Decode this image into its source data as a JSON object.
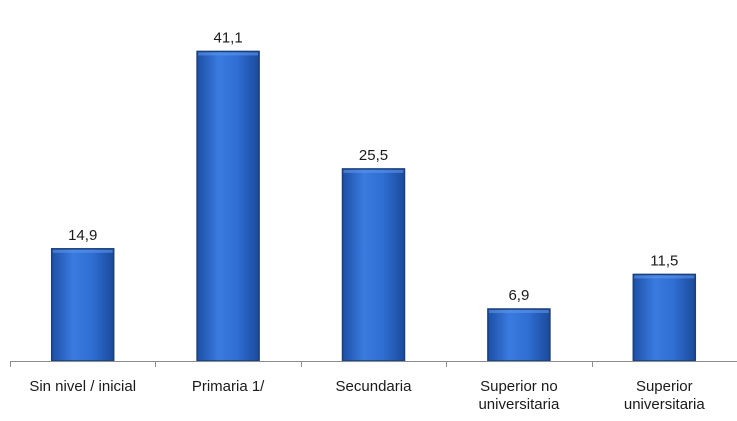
{
  "chart_data": {
    "type": "bar",
    "categories": [
      [
        "Sin nivel / inicial"
      ],
      [
        "Primaria 1/"
      ],
      [
        "Secundaria"
      ],
      [
        "Superior no",
        "universitaria"
      ],
      [
        "Superior",
        "universitaria"
      ]
    ],
    "values": [
      14.9,
      41.1,
      25.5,
      6.9,
      11.5
    ],
    "value_labels": [
      "14,9",
      "41,1",
      "25,5",
      "6,9",
      "11,5"
    ],
    "ylim": [
      0,
      45
    ],
    "grid": false,
    "bar_color": "#2f6ed3",
    "bar_edge_color": "#1a3f7a"
  }
}
